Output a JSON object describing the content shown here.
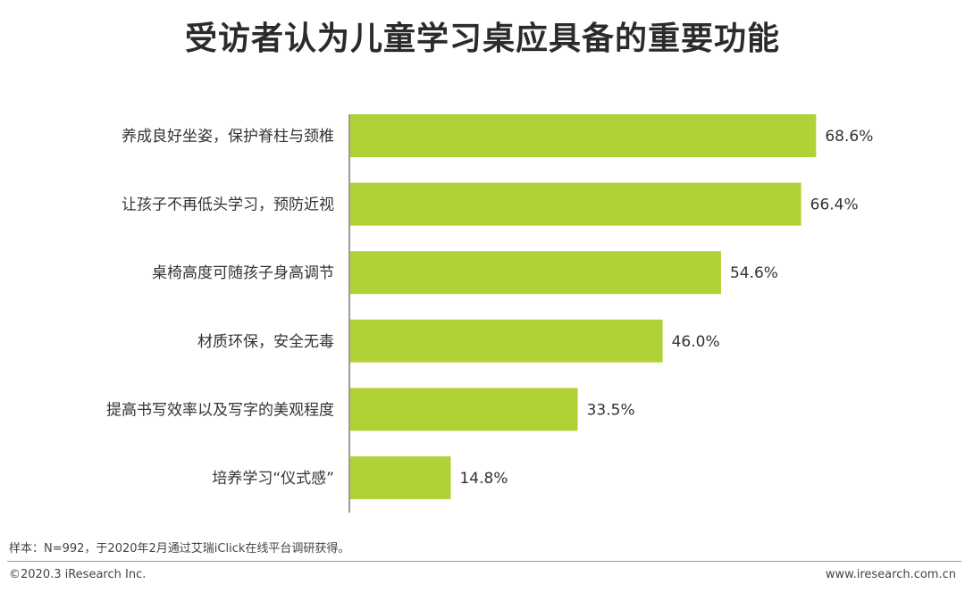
{
  "title": "受访者认为儿童学习桌应具备的重要功能",
  "chart_data": {
    "type": "bar",
    "orientation": "horizontal",
    "categories": [
      "养成良好坐姿，保护脊柱与颈椎",
      "让孩子不再低头学习，预防近视",
      "桌椅高度可随孩子身高调节",
      "材质环保，安全无毒",
      "提高书写效率以及写字的美观程度",
      "培养学习“仪式感”"
    ],
    "values": [
      68.6,
      66.4,
      54.6,
      46.0,
      33.5,
      14.8
    ],
    "value_labels": [
      "68.6%",
      "66.4%",
      "54.6%",
      "46.0%",
      "33.5%",
      "14.8%"
    ],
    "xlim": [
      0,
      100
    ],
    "bar_color": "#B1D236",
    "grid": false
  },
  "footer": {
    "note": "样本：N=992，于2020年2月通过艾瑞iClick在线平台调研获得。",
    "copyright": "©2020.3 iResearch Inc.",
    "website": "www.iresearch.com.cn"
  }
}
